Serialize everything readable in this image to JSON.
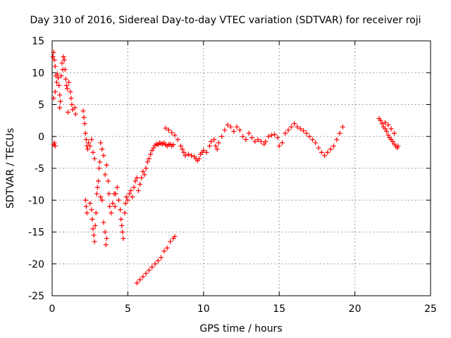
{
  "chart_data": {
    "type": "scatter",
    "title": "Day 310 of 2016, Sidereal Day-to-day VTEC variation (SDTVAR) for receiver roji",
    "xlabel": "GPS time / hours",
    "ylabel": "SDTVAR / TECUs",
    "xlim": [
      0,
      25
    ],
    "ylim": [
      -25,
      15
    ],
    "xticks": [
      "0",
      "5",
      "10",
      "15",
      "20",
      "25"
    ],
    "yticks": [
      "-25",
      "-20",
      "-15",
      "-10",
      "-5",
      "0",
      "5",
      "10",
      "15"
    ],
    "grid": true,
    "marker": "+",
    "color": "#ff0000",
    "series": [
      {
        "points": [
          [
            0.05,
            12.5
          ],
          [
            0.1,
            13.2
          ],
          [
            0.15,
            12.0
          ],
          [
            0.2,
            11.0
          ],
          [
            0.25,
            9.5
          ],
          [
            0.3,
            8.5
          ],
          [
            0.2,
            7.0
          ],
          [
            0.1,
            6.0
          ],
          [
            0.15,
            -1.0
          ],
          [
            0.1,
            -1.3
          ],
          [
            0.2,
            -1.5
          ],
          [
            0.35,
            9.8
          ],
          [
            0.4,
            9.2
          ],
          [
            0.45,
            8.0
          ],
          [
            0.5,
            6.5
          ],
          [
            0.55,
            5.5
          ],
          [
            0.5,
            4.5
          ],
          [
            0.6,
            9.5
          ],
          [
            0.7,
            10.5
          ],
          [
            0.65,
            11.5
          ],
          [
            0.75,
            12.5
          ],
          [
            0.8,
            12.0
          ],
          [
            0.85,
            10.5
          ],
          [
            0.9,
            9.0
          ],
          [
            0.95,
            8.0
          ],
          [
            1.0,
            7.5
          ],
          [
            1.1,
            8.5
          ],
          [
            1.2,
            7.0
          ],
          [
            1.25,
            6.0
          ],
          [
            1.3,
            5.0
          ],
          [
            1.35,
            4.2
          ],
          [
            1.05,
            3.8
          ],
          [
            1.5,
            4.5
          ],
          [
            1.55,
            3.5
          ],
          [
            2.05,
            4.0
          ],
          [
            2.1,
            3.0
          ],
          [
            2.15,
            2.0
          ],
          [
            2.2,
            0.5
          ],
          [
            2.25,
            -0.5
          ],
          [
            2.3,
            -1.5
          ],
          [
            2.35,
            -2.0
          ],
          [
            2.4,
            -1.0
          ],
          [
            2.5,
            -1.5
          ],
          [
            2.6,
            -0.5
          ],
          [
            2.7,
            -2.5
          ],
          [
            2.8,
            -3.5
          ],
          [
            2.2,
            -10.0
          ],
          [
            2.25,
            -11.0
          ],
          [
            2.3,
            -12.0
          ],
          [
            2.5,
            -10.5
          ],
          [
            2.6,
            -11.5
          ],
          [
            2.65,
            -13.0
          ],
          [
            2.7,
            -14.5
          ],
          [
            2.75,
            -15.5
          ],
          [
            2.8,
            -16.5
          ],
          [
            2.85,
            -14.0
          ],
          [
            2.9,
            -12.0
          ],
          [
            2.95,
            -9.0
          ],
          [
            3.0,
            -8.0
          ],
          [
            3.05,
            -7.0
          ],
          [
            3.1,
            -5.0
          ],
          [
            3.15,
            -4.0
          ],
          [
            3.2,
            -9.5
          ],
          [
            3.3,
            -10.0
          ],
          [
            3.4,
            -13.5
          ],
          [
            3.5,
            -15.0
          ],
          [
            3.55,
            -17.0
          ],
          [
            3.6,
            -16.0
          ],
          [
            3.2,
            -1.0
          ],
          [
            3.3,
            -2.0
          ],
          [
            3.4,
            -3.0
          ],
          [
            3.5,
            -6.0
          ],
          [
            3.6,
            -4.5
          ],
          [
            3.7,
            -7.0
          ],
          [
            3.75,
            -9.0
          ],
          [
            3.8,
            -11.0
          ],
          [
            3.9,
            -12.0
          ],
          [
            4.0,
            -10.5
          ],
          [
            4.1,
            -9.0
          ],
          [
            4.15,
            -11.0
          ],
          [
            4.2,
            -9.0
          ],
          [
            4.3,
            -8.0
          ],
          [
            4.4,
            -10.0
          ],
          [
            4.5,
            -11.5
          ],
          [
            4.55,
            -13.0
          ],
          [
            4.6,
            -14.0
          ],
          [
            4.65,
            -15.0
          ],
          [
            4.7,
            -16.0
          ],
          [
            4.8,
            -12.0
          ],
          [
            4.85,
            -10.5
          ],
          [
            4.9,
            -9.5
          ],
          [
            5.0,
            -10.0
          ],
          [
            5.1,
            -9.0
          ],
          [
            5.2,
            -8.5
          ],
          [
            5.3,
            -9.5
          ],
          [
            5.4,
            -8.0
          ],
          [
            5.5,
            -7.0
          ],
          [
            5.6,
            -6.5
          ],
          [
            5.7,
            -8.5
          ],
          [
            5.8,
            -7.5
          ],
          [
            5.9,
            -6.5
          ],
          [
            6.0,
            -5.5
          ],
          [
            6.1,
            -6.0
          ],
          [
            6.2,
            -5.0
          ],
          [
            6.3,
            -4.0
          ],
          [
            6.4,
            -3.5
          ],
          [
            6.5,
            -2.8
          ],
          [
            6.6,
            -2.2
          ],
          [
            6.7,
            -1.8
          ],
          [
            6.8,
            -1.4
          ],
          [
            6.9,
            -1.2
          ],
          [
            7.0,
            -1.3
          ],
          [
            7.1,
            -1.0
          ],
          [
            7.2,
            -1.1
          ],
          [
            7.3,
            -1.2
          ],
          [
            7.4,
            -1.0
          ],
          [
            7.5,
            -1.3
          ],
          [
            7.6,
            -1.5
          ],
          [
            7.7,
            -1.3
          ],
          [
            7.8,
            -1.2
          ],
          [
            7.9,
            -1.5
          ],
          [
            8.0,
            -1.3
          ],
          [
            7.5,
            1.3
          ],
          [
            7.7,
            1.0
          ],
          [
            7.9,
            0.6
          ],
          [
            8.1,
            0.2
          ],
          [
            8.3,
            -0.5
          ],
          [
            8.5,
            -1.5
          ],
          [
            8.6,
            -2.0
          ],
          [
            8.7,
            -2.5
          ],
          [
            8.8,
            -3.0
          ],
          [
            9.0,
            -2.8
          ],
          [
            9.2,
            -3.0
          ],
          [
            9.4,
            -3.2
          ],
          [
            9.5,
            -3.5
          ],
          [
            9.6,
            -3.8
          ],
          [
            9.7,
            -3.5
          ],
          [
            9.8,
            -2.8
          ],
          [
            9.9,
            -2.5
          ],
          [
            10.0,
            -2.2
          ],
          [
            10.2,
            -2.5
          ],
          [
            10.4,
            -1.5
          ],
          [
            10.5,
            -0.8
          ],
          [
            10.7,
            -0.5
          ],
          [
            10.8,
            -1.5
          ],
          [
            10.9,
            -2.0
          ],
          [
            11.0,
            -1.0
          ],
          [
            11.2,
            0.0
          ],
          [
            11.4,
            1.0
          ],
          [
            11.6,
            1.8
          ],
          [
            11.8,
            1.5
          ],
          [
            12.0,
            0.8
          ],
          [
            12.2,
            1.5
          ],
          [
            12.4,
            1.0
          ],
          [
            12.6,
            0.0
          ],
          [
            12.8,
            -0.5
          ],
          [
            13.0,
            0.5
          ],
          [
            13.2,
            -0.2
          ],
          [
            13.4,
            -0.8
          ],
          [
            13.6,
            -0.5
          ],
          [
            13.8,
            -0.8
          ],
          [
            14.0,
            -1.2
          ],
          [
            14.1,
            -0.8
          ],
          [
            14.3,
            0.0
          ],
          [
            14.5,
            0.2
          ],
          [
            14.7,
            0.3
          ],
          [
            14.9,
            -0.2
          ],
          [
            15.0,
            -1.5
          ],
          [
            15.2,
            -1.0
          ],
          [
            15.4,
            0.5
          ],
          [
            15.6,
            1.0
          ],
          [
            15.8,
            1.5
          ],
          [
            16.0,
            2.0
          ],
          [
            16.2,
            1.5
          ],
          [
            16.4,
            1.2
          ],
          [
            16.6,
            0.9
          ],
          [
            16.8,
            0.5
          ],
          [
            17.0,
            0.0
          ],
          [
            17.2,
            -0.5
          ],
          [
            17.4,
            -1.0
          ],
          [
            17.6,
            -1.8
          ],
          [
            17.8,
            -2.5
          ],
          [
            18.0,
            -3.0
          ],
          [
            18.2,
            -2.5
          ],
          [
            18.4,
            -2.0
          ],
          [
            18.6,
            -1.5
          ],
          [
            18.8,
            -0.5
          ],
          [
            19.0,
            0.5
          ],
          [
            19.2,
            1.5
          ],
          [
            5.6,
            -23.0
          ],
          [
            5.8,
            -22.5
          ],
          [
            6.0,
            -22.0
          ],
          [
            6.2,
            -21.5
          ],
          [
            6.4,
            -21.0
          ],
          [
            6.6,
            -20.5
          ],
          [
            6.8,
            -20.0
          ],
          [
            7.0,
            -19.5
          ],
          [
            7.2,
            -19.0
          ],
          [
            7.4,
            -18.0
          ],
          [
            7.6,
            -17.5
          ],
          [
            7.8,
            -16.5
          ],
          [
            8.0,
            -16.0
          ],
          [
            8.1,
            -15.7
          ],
          [
            21.6,
            2.8
          ],
          [
            21.7,
            2.5
          ],
          [
            21.8,
            2.0
          ],
          [
            21.9,
            1.5
          ],
          [
            22.0,
            1.2
          ],
          [
            22.1,
            0.8
          ],
          [
            22.2,
            0.2
          ],
          [
            22.3,
            -0.2
          ],
          [
            22.4,
            -0.5
          ],
          [
            22.5,
            -0.8
          ],
          [
            22.6,
            -1.2
          ],
          [
            22.7,
            -1.5
          ],
          [
            22.8,
            -1.8
          ],
          [
            22.85,
            -1.5
          ],
          [
            22.6,
            0.5
          ],
          [
            22.4,
            1.2
          ],
          [
            22.2,
            1.8
          ],
          [
            22.0,
            2.2
          ]
        ]
      }
    ]
  }
}
